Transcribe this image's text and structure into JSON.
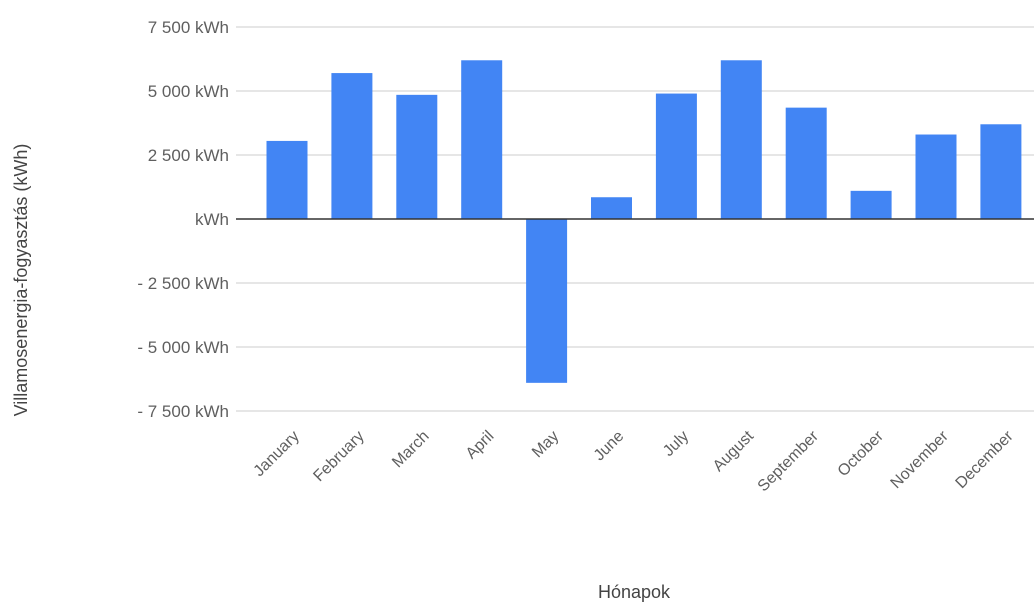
{
  "chart_data": {
    "type": "bar",
    "title": "",
    "xlabel": "Hónapok",
    "ylabel": "Villamosenergia-fogyasztás (kWh)",
    "categories": [
      "January",
      "February",
      "March",
      "April",
      "May",
      "June",
      "July",
      "August",
      "September",
      "October",
      "November",
      "December"
    ],
    "values": [
      3050,
      5700,
      4850,
      6200,
      -6400,
      850,
      4900,
      6200,
      4350,
      1100,
      3300,
      3700
    ],
    "ylim": [
      -7500,
      7500
    ],
    "yticks": [
      7500,
      5000,
      2500,
      0,
      -2500,
      -5000,
      -7500
    ],
    "ytick_labels": [
      "7 500  kWh",
      "5 000  kWh",
      "2 500  kWh",
      "kWh",
      "- 2 500  kWh",
      "- 5 000  kWh",
      "- 7 500  kWh"
    ],
    "grid": true,
    "bar_color": "#4285f4"
  }
}
